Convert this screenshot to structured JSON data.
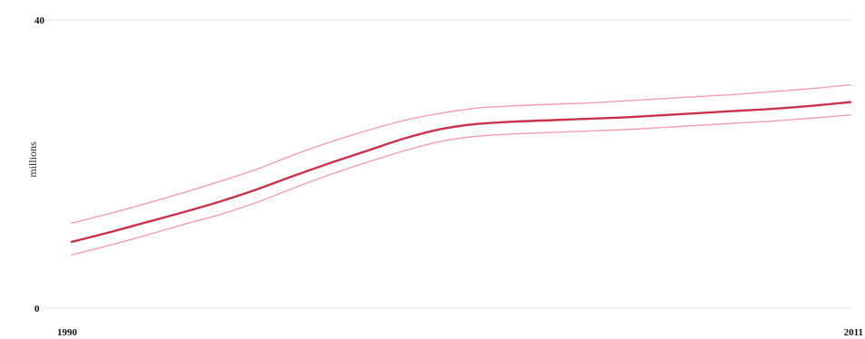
{
  "chart_data": {
    "type": "line",
    "title": "",
    "xlabel": "",
    "ylabel": "millions",
    "xlim": [
      1990,
      2011
    ],
    "ylim": [
      0,
      40
    ],
    "x_ticks": [
      "1990",
      "2011"
    ],
    "y_ticks": [
      "0",
      "40"
    ],
    "grid": "horizontal",
    "legend": "none",
    "x": [
      1990,
      1991,
      1992,
      1993,
      1994,
      1995,
      1996,
      1997,
      1998,
      1999,
      2000,
      2001,
      2002,
      2003,
      2004,
      2005,
      2006,
      2007,
      2008,
      2009,
      2010,
      2011
    ],
    "series": [
      {
        "role": "estimate",
        "color": "#c8324a",
        "values": [
          9.2,
          10.5,
          11.9,
          13.3,
          14.8,
          16.5,
          18.4,
          20.2,
          21.9,
          23.6,
          24.9,
          25.6,
          25.9,
          26.1,
          26.3,
          26.5,
          26.8,
          27.1,
          27.4,
          27.7,
          28.1,
          28.6
        ]
      },
      {
        "role": "upper-bound",
        "color": "#f2a0ae",
        "values": [
          11.8,
          13.1,
          14.5,
          16.0,
          17.6,
          19.3,
          21.3,
          23.1,
          24.7,
          26.1,
          27.1,
          27.8,
          28.1,
          28.3,
          28.5,
          28.8,
          29.1,
          29.4,
          29.7,
          30.1,
          30.5,
          31.0
        ]
      },
      {
        "role": "lower-bound",
        "color": "#f2a0ae",
        "values": [
          7.4,
          8.7,
          10.1,
          11.6,
          13.0,
          14.7,
          16.7,
          18.6,
          20.3,
          21.9,
          23.2,
          23.9,
          24.2,
          24.4,
          24.6,
          24.8,
          25.1,
          25.4,
          25.7,
          26.0,
          26.4,
          26.8
        ]
      }
    ]
  }
}
